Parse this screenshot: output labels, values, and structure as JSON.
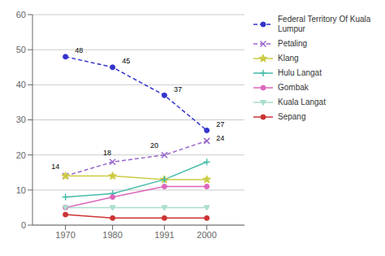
{
  "chart_data": {
    "type": "line",
    "x": [
      1970,
      1980,
      1991,
      2000
    ],
    "series": [
      {
        "name": "Federal Territory Of Kuala\nLumpur",
        "values": [
          48,
          45,
          37,
          27
        ],
        "color": "#3333cc",
        "marker": "circle",
        "line_style": "dashed"
      },
      {
        "name": "Petaling",
        "values": [
          14,
          18,
          20,
          24
        ],
        "color": "#9966cc",
        "marker": "x",
        "line_style": "dashed"
      },
      {
        "name": "Klang",
        "values": [
          14,
          14,
          13,
          13
        ],
        "color": "#cccc44",
        "marker": "star",
        "line_style": "solid"
      },
      {
        "name": "Hulu Langat",
        "values": [
          8,
          9,
          13,
          18
        ],
        "color": "#44bbaa",
        "marker": "plus",
        "line_style": "solid"
      },
      {
        "name": "Gombak",
        "values": [
          5,
          8,
          11,
          11
        ],
        "color": "#dd66bb",
        "marker": "circle",
        "line_style": "solid"
      },
      {
        "name": "Kuala Langat",
        "values": [
          5,
          5,
          5,
          5
        ],
        "color": "#aaddcc",
        "marker": "triangle_down",
        "line_style": "solid"
      },
      {
        "name": "Sepang",
        "values": [
          3,
          2,
          2,
          2
        ],
        "color": "#cc3333",
        "marker": "circle",
        "line_style": "solid"
      }
    ],
    "annotations": [
      {
        "text": "48",
        "x": 1972,
        "y": 49
      },
      {
        "text": "45",
        "x": 1982,
        "y": 46
      },
      {
        "text": "37",
        "x": 1993,
        "y": 38
      },
      {
        "text": "27",
        "x": 2002,
        "y": 28
      },
      {
        "text": "14",
        "x": 1967,
        "y": 16
      },
      {
        "text": "18",
        "x": 1978,
        "y": 20
      },
      {
        "text": "20",
        "x": 1988,
        "y": 22
      },
      {
        "text": "24",
        "x": 2002,
        "y": 24
      }
    ],
    "xlim": [
      1963,
      2008
    ],
    "xticks": [
      1970,
      1980,
      1991,
      2000
    ],
    "ylim": [
      0,
      60
    ],
    "yticks": [
      0,
      10,
      20,
      30,
      40,
      50,
      60
    ],
    "grid": true,
    "legend": "right"
  }
}
